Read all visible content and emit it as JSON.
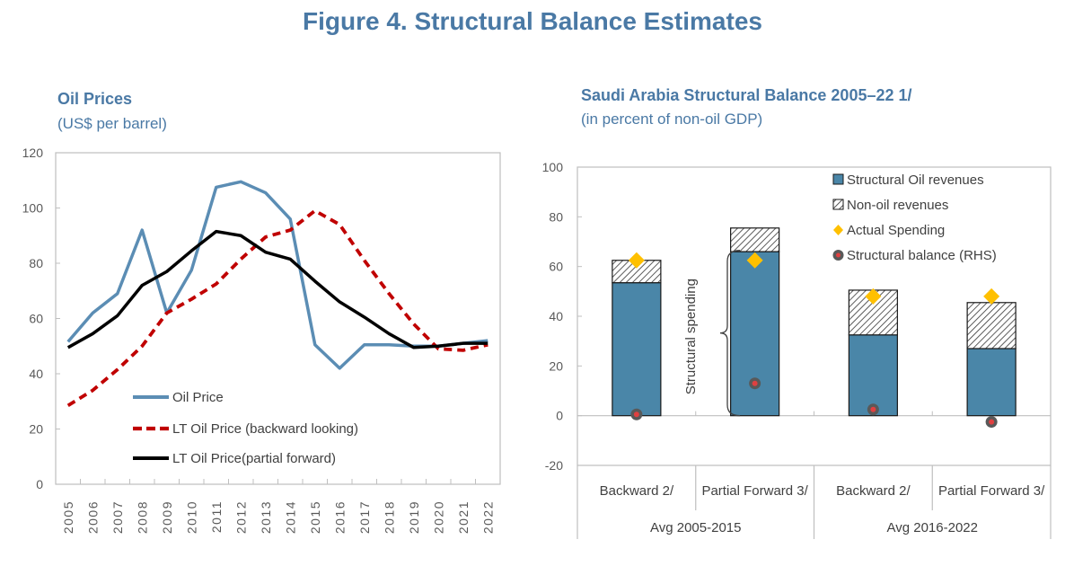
{
  "figure_title": "Figure 4. Structural Balance Estimates",
  "colors": {
    "title": "#4a79a5",
    "oil_price": "#5b8db4",
    "lt_backward": "#c00000",
    "lt_forward": "#000000",
    "oil_revenue_bar": "#4a86a8",
    "spending_marker": "#ffc000",
    "balance_marker_outer": "#595959",
    "balance_marker_inner": "#e04040"
  },
  "chart_data": [
    {
      "type": "line",
      "title": "Oil Prices",
      "subtitle": "(US$ per barrel)",
      "xlabel": "",
      "ylabel": "",
      "x": [
        "2005",
        "2006",
        "2007",
        "2008",
        "2009",
        "2010",
        "2011",
        "2012",
        "2013",
        "2014",
        "2015",
        "2016",
        "2017",
        "2018",
        "2019",
        "2020",
        "2021",
        "2022"
      ],
      "ylim": [
        0,
        120
      ],
      "yticks": [
        0,
        20,
        40,
        60,
        80,
        100,
        120
      ],
      "grid": false,
      "legend_position": "bottom-center",
      "series": [
        {
          "name": "Oil Price",
          "style": "solid",
          "values": [
            51.6,
            62,
            69,
            92,
            62,
            77.5,
            107.5,
            109.5,
            105.5,
            96,
            50.5,
            42,
            50.5,
            50.5,
            50,
            50,
            51,
            52
          ]
        },
        {
          "name": "LT Oil Price (backward looking)",
          "style": "dashed",
          "values": [
            28.5,
            34,
            41.5,
            50,
            62,
            67,
            72.5,
            81.5,
            89.5,
            92,
            99,
            94,
            81,
            69,
            58,
            49,
            48.5,
            50.5
          ]
        },
        {
          "name": "LT Oil Price(partial forward)",
          "style": "solid",
          "values": [
            49.5,
            54.5,
            61,
            72,
            77,
            84.5,
            91.5,
            90,
            84,
            81.5,
            73.5,
            66,
            60.5,
            54.5,
            49.5,
            50,
            51,
            51
          ]
        }
      ]
    },
    {
      "type": "bar",
      "stacked": true,
      "title": "Saudi Arabia Structural Balance 2005–22 1/",
      "subtitle": "(in percent of non-oil GDP)",
      "categories": [
        "Backward 2/",
        "Partial Forward  3/",
        "Backward 2/",
        "Partial Forward 3/"
      ],
      "groups": [
        {
          "label": "Avg 2005-2015",
          "span": 2
        },
        {
          "label": "Avg 2016-2022",
          "span": 2
        }
      ],
      "ylim": [
        -20,
        100
      ],
      "yticks": [
        -20,
        0,
        20,
        40,
        60,
        80,
        100
      ],
      "grid": false,
      "legend_position": "top-right",
      "annotation": "Structural spending",
      "series": [
        {
          "name": "Structural Oil revenues",
          "kind": "bar",
          "values": [
            53.5,
            66,
            32.5,
            27
          ]
        },
        {
          "name": "Non-oil revenues",
          "kind": "bar-hatched",
          "values": [
            9,
            9.5,
            18,
            18.5
          ]
        },
        {
          "name": "Actual Spending",
          "kind": "diamond",
          "values": [
            62.5,
            62.5,
            48,
            48
          ]
        },
        {
          "name": "Structural balance (RHS)",
          "kind": "dot",
          "values": [
            0.5,
            13,
            2.5,
            -2.5
          ]
        }
      ]
    }
  ]
}
